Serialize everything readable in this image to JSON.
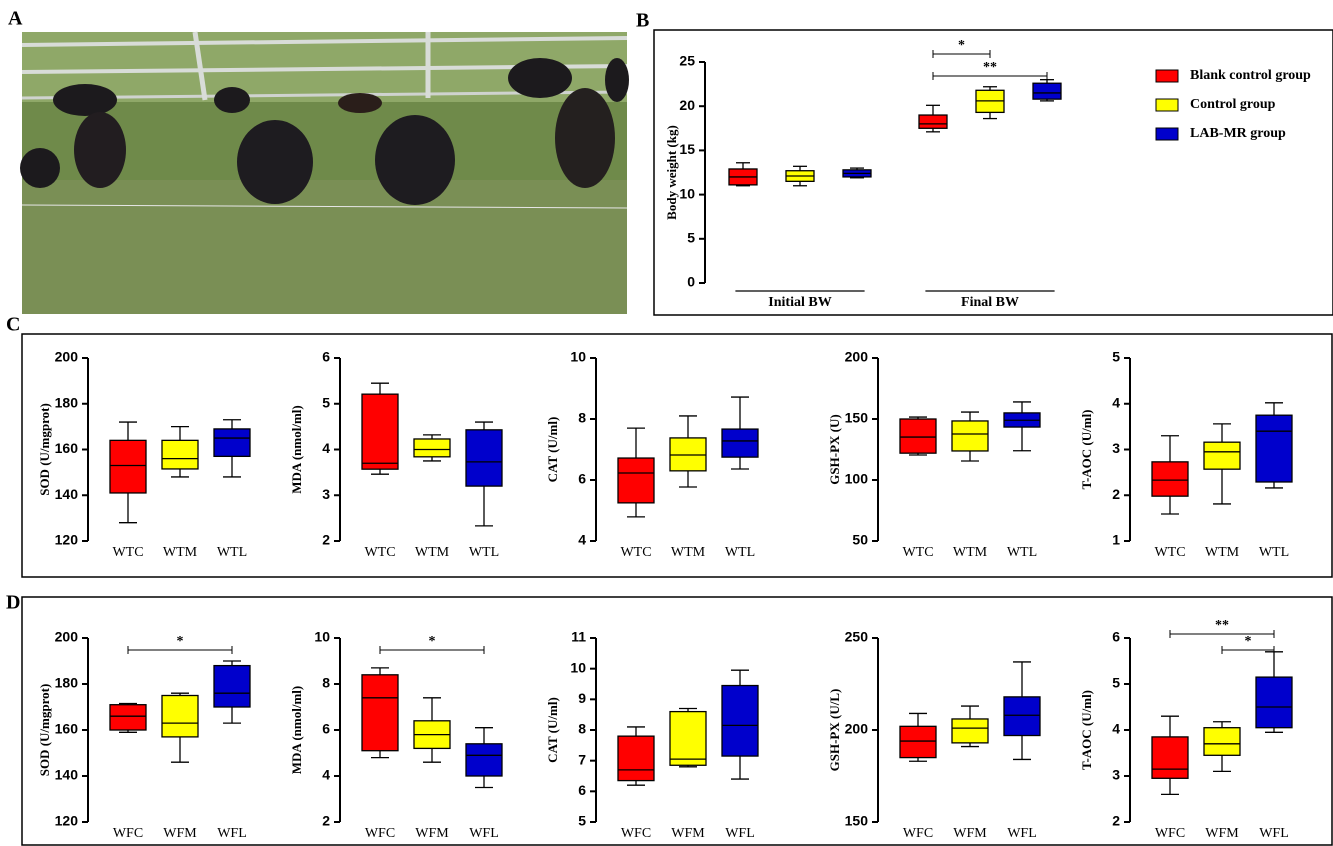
{
  "panel_labels": [
    "A",
    "B",
    "C",
    "D"
  ],
  "chart_data": [
    {
      "type": "box",
      "ylabel": "Body weight (kg)",
      "categories": [
        "Initial BW",
        "Final BW"
      ],
      "ylim": [
        0,
        25
      ],
      "yticks": [
        0,
        5,
        10,
        15,
        20,
        25
      ],
      "series": [
        {
          "name": "Blank control group",
          "color": "#ff0000",
          "min": [
            11.0,
            17.1
          ],
          "q1": [
            11.1,
            17.5
          ],
          "median": [
            12.0,
            18.0
          ],
          "q3": [
            12.9,
            19.0
          ],
          "max": [
            13.6,
            20.1
          ]
        },
        {
          "name": "Control group",
          "color": "#ffff00",
          "min": [
            11.0,
            18.6
          ],
          "q1": [
            11.5,
            19.3
          ],
          "median": [
            12.1,
            20.6
          ],
          "q3": [
            12.7,
            21.8
          ],
          "max": [
            13.2,
            22.2
          ]
        },
        {
          "name": "LAB-MR group",
          "color": "#0000cc",
          "min": [
            11.9,
            20.6
          ],
          "q1": [
            12.0,
            20.8
          ],
          "median": [
            12.4,
            21.5
          ],
          "q3": [
            12.8,
            22.6
          ],
          "max": [
            13.0,
            23.0
          ]
        }
      ],
      "annotations": [
        {
          "category": "Final BW",
          "from": "Blank control group",
          "to": "Control group",
          "text": "*"
        },
        {
          "category": "Final BW",
          "from": "Blank control group",
          "to": "LAB-MR group",
          "text": "**"
        }
      ]
    },
    {
      "type": "box",
      "ylabel": "SOD (U/mgprot)",
      "categories": [
        "WTC",
        "WTM",
        "WTL"
      ],
      "colors": [
        "#ff0000",
        "#ffff00",
        "#0000cc"
      ],
      "ylim": [
        120,
        200
      ],
      "yticks": [
        120,
        140,
        160,
        180,
        200
      ],
      "min": [
        128,
        148,
        148
      ],
      "q1": [
        141,
        151.5,
        157
      ],
      "median": [
        153,
        156,
        165
      ],
      "q3": [
        164,
        164,
        169
      ],
      "max": [
        172,
        170,
        173
      ],
      "annotations": []
    },
    {
      "type": "box",
      "ylabel": "MDA (nmol/ml)",
      "categories": [
        "WTC",
        "WTM",
        "WTL"
      ],
      "colors": [
        "#ff0000",
        "#ffff00",
        "#0000cc"
      ],
      "ylim": [
        2,
        6
      ],
      "yticks": [
        2,
        3,
        4,
        5,
        6
      ],
      "min": [
        3.46,
        3.75,
        2.33
      ],
      "q1": [
        3.57,
        3.84,
        3.2
      ],
      "median": [
        3.7,
        4.0,
        3.73
      ],
      "q3": [
        5.21,
        4.23,
        4.43
      ],
      "max": [
        5.45,
        4.32,
        4.6
      ],
      "annotations": []
    },
    {
      "type": "box",
      "ylabel": "CAT (U/ml)",
      "categories": [
        "WTC",
        "WTM",
        "WTL"
      ],
      "colors": [
        "#ff0000",
        "#ffff00",
        "#0000cc"
      ],
      "ylim": [
        4,
        10
      ],
      "yticks": [
        4,
        6,
        8,
        10
      ],
      "min": [
        4.79,
        5.77,
        6.36
      ],
      "q1": [
        5.25,
        6.3,
        6.75
      ],
      "median": [
        6.23,
        6.82,
        7.28
      ],
      "q3": [
        6.72,
        7.38,
        7.67
      ],
      "max": [
        7.7,
        8.1,
        8.72
      ],
      "annotations": []
    },
    {
      "type": "box",
      "ylabel": "GSH-PX (U)",
      "categories": [
        "WTC",
        "WTM",
        "WTL"
      ],
      "colors": [
        "#ff0000",
        "#ffff00",
        "#0000cc"
      ],
      "ylim": [
        50,
        200
      ],
      "yticks": [
        50,
        100,
        150,
        200
      ],
      "min": [
        120.5,
        115.6,
        124
      ],
      "q1": [
        122,
        123.8,
        143.4
      ],
      "median": [
        135.2,
        137.7,
        149
      ],
      "q3": [
        150,
        148.4,
        155
      ],
      "max": [
        151.6,
        155.7,
        164
      ],
      "annotations": []
    },
    {
      "type": "box",
      "ylabel": "T-AOC (U/ml)",
      "categories": [
        "WTC",
        "WTM",
        "WTL"
      ],
      "colors": [
        "#ff0000",
        "#ffff00",
        "#0000cc"
      ],
      "ylim": [
        1,
        5
      ],
      "yticks": [
        1,
        2,
        3,
        4,
        5
      ],
      "min": [
        1.59,
        1.81,
        2.16
      ],
      "q1": [
        1.98,
        2.57,
        2.29
      ],
      "median": [
        2.33,
        2.95,
        3.4
      ],
      "q3": [
        2.73,
        3.16,
        3.75
      ],
      "max": [
        3.3,
        3.56,
        4.02
      ],
      "annotations": []
    },
    {
      "type": "box",
      "ylabel": "SOD (U/mgprot)",
      "categories": [
        "WFC",
        "WFM",
        "WFL"
      ],
      "colors": [
        "#ff0000",
        "#ffff00",
        "#0000cc"
      ],
      "ylim": [
        120,
        200
      ],
      "yticks": [
        120,
        140,
        160,
        180,
        200
      ],
      "min": [
        159,
        146,
        163
      ],
      "q1": [
        160,
        157,
        170
      ],
      "median": [
        166,
        163,
        176
      ],
      "q3": [
        171,
        175,
        188
      ],
      "max": [
        171.5,
        176,
        190
      ],
      "annotations": [
        {
          "from": "WFC",
          "to": "WFL",
          "text": "*"
        }
      ]
    },
    {
      "type": "box",
      "ylabel": "MDA (nmol/ml)",
      "categories": [
        "WFC",
        "WFM",
        "WFL"
      ],
      "colors": [
        "#ff0000",
        "#ffff00",
        "#0000cc"
      ],
      "ylim": [
        2,
        10
      ],
      "yticks": [
        2,
        4,
        6,
        8,
        10
      ],
      "min": [
        4.8,
        4.6,
        3.5
      ],
      "q1": [
        5.1,
        5.2,
        4.0
      ],
      "median": [
        7.4,
        5.8,
        4.9
      ],
      "q3": [
        8.4,
        6.4,
        5.4
      ],
      "max": [
        8.7,
        7.4,
        6.1
      ],
      "annotations": [
        {
          "from": "WFC",
          "to": "WFL",
          "text": "*"
        }
      ]
    },
    {
      "type": "box",
      "ylabel": "CAT (U/ml)",
      "categories": [
        "WFC",
        "WFM",
        "WFL"
      ],
      "colors": [
        "#ff0000",
        "#ffff00",
        "#0000cc"
      ],
      "ylim": [
        5,
        11
      ],
      "yticks": [
        5,
        6,
        7,
        8,
        9,
        10,
        11
      ],
      "min": [
        6.2,
        6.8,
        6.4
      ],
      "q1": [
        6.35,
        6.85,
        7.15
      ],
      "median": [
        6.7,
        7.05,
        8.15
      ],
      "q3": [
        7.8,
        8.6,
        9.45
      ],
      "max": [
        8.1,
        8.7,
        9.95
      ],
      "annotations": []
    },
    {
      "type": "box",
      "ylabel": "GSH-PX (U/L)",
      "categories": [
        "WFC",
        "WFM",
        "WFL"
      ],
      "colors": [
        "#ff0000",
        "#ffff00",
        "#0000cc"
      ],
      "ylim": [
        150,
        250
      ],
      "yticks": [
        150,
        200,
        250
      ],
      "min": [
        183,
        191,
        184
      ],
      "q1": [
        185,
        193,
        197
      ],
      "median": [
        194,
        201,
        208
      ],
      "q3": [
        202,
        206,
        218
      ],
      "max": [
        209,
        213,
        237
      ],
      "annotations": []
    },
    {
      "type": "box",
      "ylabel": "T-AOC (U/ml)",
      "categories": [
        "WFC",
        "WFM",
        "WFL"
      ],
      "colors": [
        "#ff0000",
        "#ffff00",
        "#0000cc"
      ],
      "ylim": [
        2,
        6
      ],
      "yticks": [
        2,
        3,
        4,
        5,
        6
      ],
      "min": [
        2.6,
        3.1,
        3.95
      ],
      "q1": [
        2.95,
        3.45,
        4.05
      ],
      "median": [
        3.15,
        3.7,
        4.5
      ],
      "q3": [
        3.85,
        4.05,
        5.15
      ],
      "max": [
        4.3,
        4.18,
        5.7
      ],
      "annotations": [
        {
          "from": "WFC",
          "to": "WFL",
          "text": "**"
        },
        {
          "from": "WFM",
          "to": "WFL",
          "text": "*"
        }
      ]
    }
  ]
}
